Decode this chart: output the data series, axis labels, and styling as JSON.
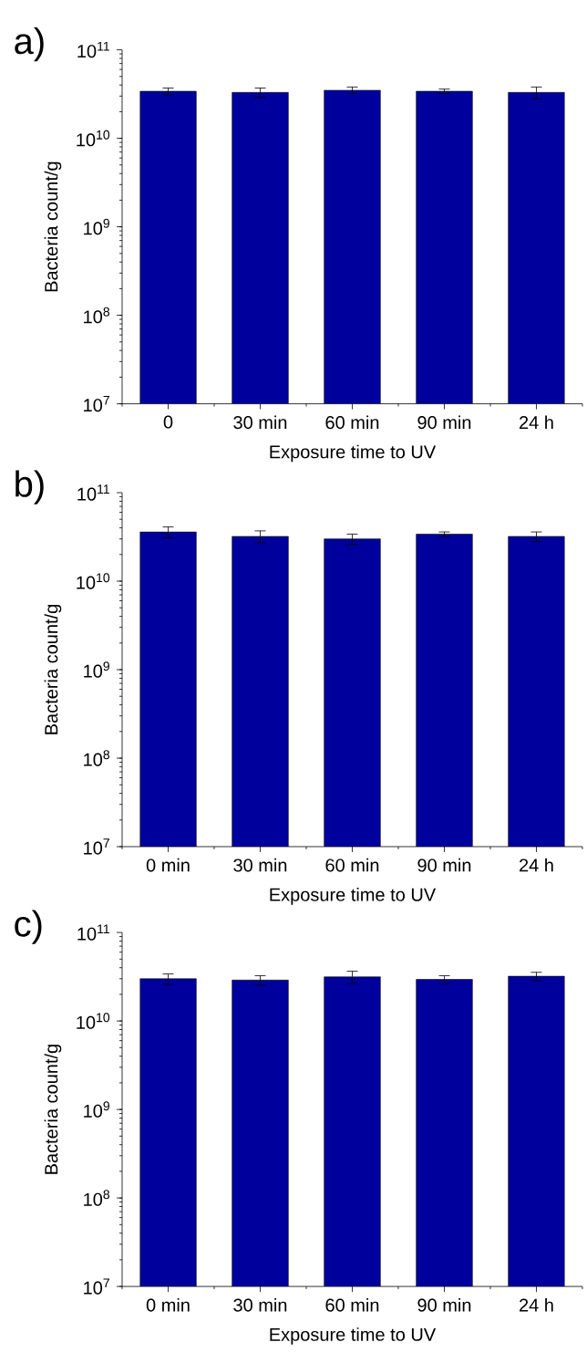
{
  "chart_data": [
    {
      "type": "bar",
      "title": "a)",
      "xlabel": "Exposure time to UV",
      "ylabel": "Bacteria count/g",
      "categories": [
        "0",
        "30 min",
        "60 min",
        "90 min",
        "24 h"
      ],
      "values": [
        34000000000.0,
        33000000000.0,
        35000000000.0,
        34000000000.0,
        33000000000.0
      ],
      "errors": [
        3000000000.0,
        4000000000.0,
        3000000000.0,
        2000000000.0,
        5000000000.0
      ],
      "color": "#00009c",
      "log": true,
      "ylim": [
        10000000.0,
        100000000000.0
      ],
      "yticks": [
        {
          "value": 10000000.0,
          "label": "10$^{7}$"
        },
        {
          "value": 100000000.0,
          "label": "10$^{8}$"
        },
        {
          "value": 1000000000.0,
          "label": "10$^{9}$"
        },
        {
          "value": 10000000000.0,
          "label": "10$^{10}$"
        },
        {
          "value": 100000000000.0,
          "label": "10$^{11}$"
        }
      ]
    },
    {
      "type": "bar",
      "title": "b)",
      "xlabel": "Exposure time to UV",
      "ylabel": "Bacteria count/g",
      "categories": [
        "0 min",
        "30 min",
        "60 min",
        "90 min",
        "24 h"
      ],
      "values": [
        36000000000.0,
        32000000000.0,
        30000000000.0,
        34000000000.0,
        32000000000.0
      ],
      "errors": [
        5000000000.0,
        5000000000.0,
        4000000000.0,
        2000000000.0,
        4000000000.0
      ],
      "color": "#00009c",
      "log": true,
      "ylim": [
        10000000.0,
        100000000000.0
      ],
      "yticks": [
        {
          "value": 10000000.0,
          "label": "10$^{7}$"
        },
        {
          "value": 100000000.0,
          "label": "10$^{8}$"
        },
        {
          "value": 1000000000.0,
          "label": "10$^{9}$"
        },
        {
          "value": 10000000000.0,
          "label": "10$^{10}$"
        },
        {
          "value": 100000000000.0,
          "label": "10$^{11}$"
        }
      ]
    },
    {
      "type": "bar",
      "title": "c)",
      "xlabel": "Exposure time to UV",
      "ylabel": "Bacteria count/g",
      "categories": [
        "0 min",
        "30 min",
        "60 min",
        "90 min",
        "24 h"
      ],
      "values": [
        30000000000.0,
        29000000000.0,
        31500000000.0,
        29500000000.0,
        32000000000.0
      ],
      "errors": [
        4000000000.0,
        3500000000.0,
        5000000000.0,
        3000000000.0,
        3500000000.0
      ],
      "color": "#00009c",
      "log": true,
      "ylim": [
        10000000.0,
        100000000000.0
      ],
      "yticks": [
        {
          "value": 10000000.0,
          "label": "10$^{7}$"
        },
        {
          "value": 100000000.0,
          "label": "10$^{8}$"
        },
        {
          "value": 1000000000.0,
          "label": "10$^{9}$"
        },
        {
          "value": 10000000000.0,
          "label": "10$^{10}$"
        },
        {
          "value": 100000000000.0,
          "label": "10$^{11}$"
        }
      ]
    }
  ]
}
